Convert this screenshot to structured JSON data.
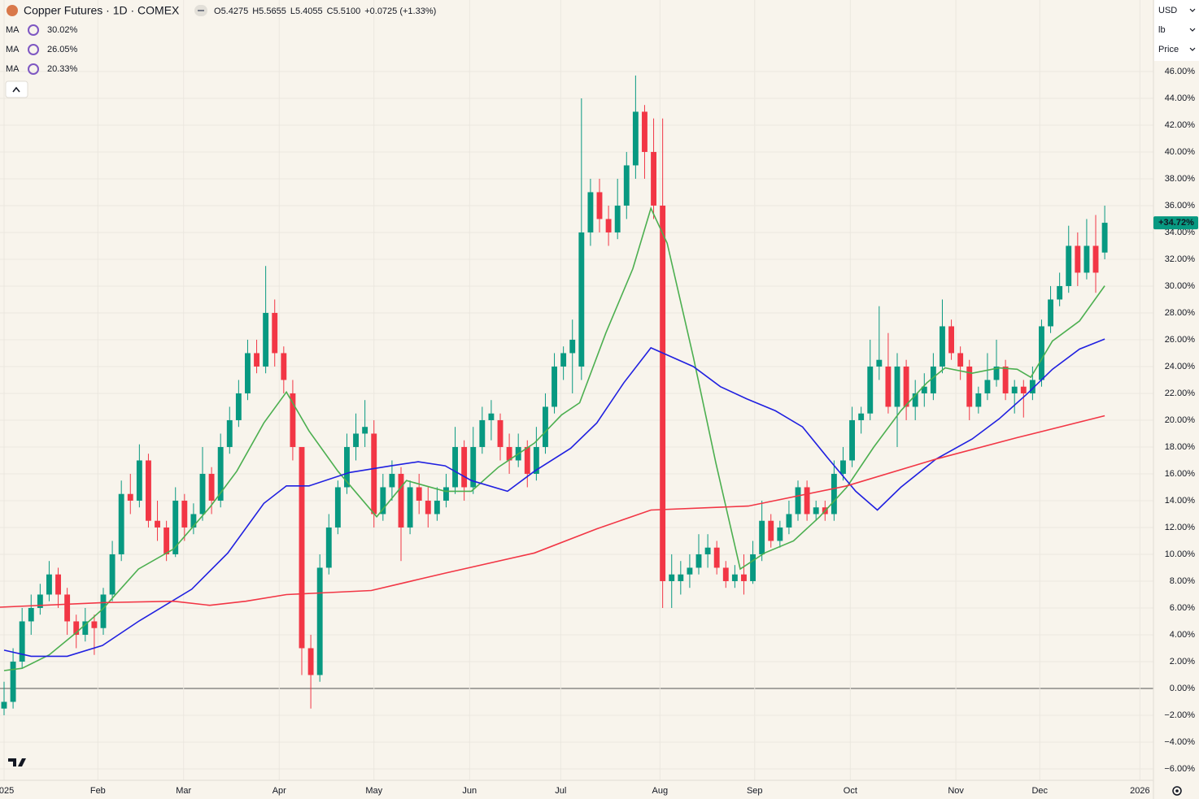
{
  "chart_data": {
    "type": "candlestick",
    "title": "Copper Futures · 1D · COMEX",
    "readout": [
      {
        "label": "O",
        "value": "5.4275"
      },
      {
        "label": "H",
        "value": "5.5655"
      },
      {
        "label": "L",
        "value": "5.4055"
      },
      {
        "label": "C",
        "value": "5.5100"
      }
    ],
    "change": "+0.0725 (+1.33%)",
    "controls": [
      "USD",
      "lb",
      "Price"
    ],
    "up_color": "#089981",
    "down_color": "#f23645",
    "grid": true,
    "last_value_label": "+34.72%",
    "xlim": [
      -0.45,
      127.4
    ],
    "xticks": [
      {
        "value": 0,
        "label": "2025"
      },
      {
        "value": 10.4,
        "label": "Feb"
      },
      {
        "value": 19.9,
        "label": "Mar"
      },
      {
        "value": 30.5,
        "label": "Apr"
      },
      {
        "value": 41.0,
        "label": "May"
      },
      {
        "value": 51.6,
        "label": "Jun"
      },
      {
        "value": 61.7,
        "label": "Jul"
      },
      {
        "value": 72.7,
        "label": "Aug"
      },
      {
        "value": 83.2,
        "label": "Sep"
      },
      {
        "value": 93.8,
        "label": "Oct"
      },
      {
        "value": 105.5,
        "label": "Nov"
      },
      {
        "value": 114.8,
        "label": "Dec"
      },
      {
        "value": 125.9,
        "label": "2026"
      }
    ],
    "ylim": [
      -6.85,
      51.33
    ],
    "yticks": [
      {
        "value": 46,
        "label": "46.00%"
      },
      {
        "value": 44,
        "label": "44.00%"
      },
      {
        "value": 42,
        "label": "42.00%"
      },
      {
        "value": 40,
        "label": "40.00%"
      },
      {
        "value": 38,
        "label": "38.00%"
      },
      {
        "value": 36,
        "label": "36.00%"
      },
      {
        "value": 34,
        "label": "34.00%"
      },
      {
        "value": 32,
        "label": "32.00%"
      },
      {
        "value": 30,
        "label": "30.00%"
      },
      {
        "value": 28,
        "label": "28.00%"
      },
      {
        "value": 26,
        "label": "26.00%"
      },
      {
        "value": 24,
        "label": "24.00%"
      },
      {
        "value": 22,
        "label": "22.00%"
      },
      {
        "value": 20,
        "label": "20.00%"
      },
      {
        "value": 18,
        "label": "18.00%"
      },
      {
        "value": 16,
        "label": "16.00%"
      },
      {
        "value": 14,
        "label": "14.00%"
      },
      {
        "value": 12,
        "label": "12.00%"
      },
      {
        "value": 10,
        "label": "10.00%"
      },
      {
        "value": 8,
        "label": "8.00%"
      },
      {
        "value": 6,
        "label": "6.00%"
      },
      {
        "value": 4,
        "label": "4.00%"
      },
      {
        "value": 2,
        "label": "2.00%"
      },
      {
        "value": 0,
        "label": "0.00%"
      },
      {
        "value": -2,
        "label": "−2.00%"
      },
      {
        "value": -4,
        "label": "−4.00%"
      },
      {
        "value": -6,
        "label": "−6.00%"
      }
    ],
    "candles": [
      [
        -1.5,
        0.5,
        -2,
        -1
      ],
      [
        -1,
        3,
        -1.5,
        2
      ],
      [
        2,
        6,
        1.5,
        5
      ],
      [
        5,
        7,
        4,
        6
      ],
      [
        6,
        7.8,
        5.5,
        7
      ],
      [
        7,
        9.5,
        6.5,
        8.5
      ],
      [
        8.5,
        9,
        6,
        7
      ],
      [
        7,
        7.5,
        4,
        5
      ],
      [
        5,
        5.5,
        3,
        4
      ],
      [
        4,
        6,
        3.5,
        5
      ],
      [
        5,
        5.5,
        2.5,
        4.5
      ],
      [
        4.5,
        7.5,
        4,
        7
      ],
      [
        7,
        11,
        6.5,
        10
      ],
      [
        10,
        15.5,
        9.5,
        14.5
      ],
      [
        14.5,
        16,
        13,
        14
      ],
      [
        14,
        18.2,
        13.5,
        17
      ],
      [
        17,
        17.5,
        12,
        12.5
      ],
      [
        12.5,
        14,
        11,
        12
      ],
      [
        12,
        12.5,
        9.5,
        10
      ],
      [
        10,
        15,
        9.8,
        14
      ],
      [
        14,
        14.5,
        11,
        12
      ],
      [
        12,
        13.8,
        11.5,
        13
      ],
      [
        13,
        18,
        12.5,
        16
      ],
      [
        16,
        16.5,
        13,
        14
      ],
      [
        14,
        19,
        13.5,
        18
      ],
      [
        18,
        21,
        17.5,
        20
      ],
      [
        20,
        23,
        19.5,
        22
      ],
      [
        22,
        26,
        21.5,
        25
      ],
      [
        25,
        26,
        23.5,
        24
      ],
      [
        24,
        31.5,
        23.5,
        28
      ],
      [
        28,
        29,
        24,
        25
      ],
      [
        25,
        25.5,
        22,
        23
      ],
      [
        22,
        23,
        17,
        18
      ],
      [
        18,
        18,
        1,
        3
      ],
      [
        3,
        4,
        -1.5,
        1
      ],
      [
        1,
        10,
        0.5,
        9
      ],
      [
        9,
        13,
        8.5,
        12
      ],
      [
        12,
        15.5,
        11.5,
        15
      ],
      [
        15,
        19,
        14.5,
        18
      ],
      [
        18,
        20.5,
        17,
        19
      ],
      [
        19,
        21.5,
        18,
        19.5
      ],
      [
        19,
        20,
        12,
        13
      ],
      [
        13,
        16,
        12.5,
        15
      ],
      [
        15,
        17,
        14,
        16
      ],
      [
        16,
        16.5,
        9.5,
        12
      ],
      [
        12,
        15.5,
        11.5,
        15
      ],
      [
        15,
        16,
        13,
        14
      ],
      [
        14,
        15,
        12,
        13
      ],
      [
        13,
        15,
        12.5,
        14
      ],
      [
        14,
        16,
        13.5,
        15
      ],
      [
        15,
        19.5,
        14.5,
        18
      ],
      [
        18,
        18.5,
        14,
        15
      ],
      [
        15,
        19.5,
        14.5,
        18
      ],
      [
        18,
        21,
        17.5,
        20
      ],
      [
        20,
        21.5,
        18.5,
        20.5
      ],
      [
        20,
        20.5,
        17,
        18
      ],
      [
        18,
        19,
        16,
        17
      ],
      [
        17,
        19,
        16.5,
        18
      ],
      [
        18,
        18.5,
        15,
        16
      ],
      [
        16,
        19.5,
        15.5,
        18
      ],
      [
        18,
        22,
        17.5,
        21
      ],
      [
        21,
        25,
        20.5,
        24
      ],
      [
        24,
        25.5,
        23,
        25
      ],
      [
        25,
        27.5,
        22,
        26
      ],
      [
        24,
        44,
        23,
        34
      ],
      [
        34,
        38,
        33,
        37
      ],
      [
        37,
        38,
        34,
        35
      ],
      [
        35,
        36,
        33,
        34
      ],
      [
        34,
        38,
        33.5,
        36
      ],
      [
        36,
        40,
        35,
        39
      ],
      [
        39,
        45.7,
        38,
        43
      ],
      [
        43,
        43.5,
        38,
        40
      ],
      [
        40,
        42.5,
        35,
        36
      ],
      [
        36,
        42.5,
        6,
        8
      ],
      [
        8,
        10,
        6,
        8.5
      ],
      [
        8,
        9.5,
        7,
        8.5
      ],
      [
        8.5,
        10,
        7.5,
        9
      ],
      [
        9,
        11.5,
        8.5,
        10
      ],
      [
        10,
        11.5,
        9,
        10.5
      ],
      [
        10.5,
        11,
        8.5,
        9
      ],
      [
        9,
        9.5,
        7.5,
        8
      ],
      [
        8,
        9.2,
        7.5,
        8.5
      ],
      [
        8.5,
        10,
        7,
        8
      ],
      [
        8,
        11,
        7.8,
        10
      ],
      [
        10,
        14,
        9.5,
        12.5
      ],
      [
        12.5,
        13,
        10.5,
        11
      ],
      [
        11,
        12.5,
        10.5,
        12
      ],
      [
        12,
        14,
        11.5,
        13
      ],
      [
        13,
        15.5,
        12.5,
        15
      ],
      [
        15,
        15.5,
        12.5,
        13
      ],
      [
        13,
        14,
        12.5,
        13.5
      ],
      [
        13.5,
        14,
        12.5,
        13
      ],
      [
        13,
        17,
        12.5,
        16
      ],
      [
        16,
        18,
        15.5,
        17
      ],
      [
        17,
        21,
        16.5,
        20
      ],
      [
        20,
        21,
        19,
        20.5
      ],
      [
        20.5,
        26,
        20,
        24
      ],
      [
        24,
        28.5,
        23,
        24.5
      ],
      [
        24,
        26.5,
        20.5,
        21
      ],
      [
        21,
        25,
        18,
        24
      ],
      [
        24,
        24.5,
        20,
        21
      ],
      [
        21,
        23,
        20,
        22
      ],
      [
        22,
        23.5,
        21,
        22.5
      ],
      [
        22,
        25,
        21.5,
        24
      ],
      [
        24,
        29,
        23.5,
        27
      ],
      [
        27,
        27.5,
        24.5,
        25
      ],
      [
        25,
        25.5,
        23,
        24
      ],
      [
        24,
        24.5,
        20,
        21
      ],
      [
        21,
        22.5,
        20.5,
        22
      ],
      [
        22,
        25,
        21.5,
        23
      ],
      [
        23,
        26,
        22.5,
        24
      ],
      [
        24,
        24.5,
        21.5,
        22
      ],
      [
        22,
        23,
        20.5,
        22.5
      ],
      [
        22.5,
        23,
        20.2,
        22
      ],
      [
        22,
        24,
        21.5,
        23
      ],
      [
        23,
        27.5,
        22.5,
        27
      ],
      [
        27,
        30,
        26.5,
        29
      ],
      [
        29,
        31,
        28.5,
        30
      ],
      [
        30,
        34.5,
        29.5,
        33
      ],
      [
        33,
        34,
        30,
        31
      ],
      [
        31,
        35,
        30.5,
        33
      ],
      [
        33,
        35.3,
        29.5,
        31
      ],
      [
        32.5,
        36,
        32,
        34.72
      ]
    ],
    "series": [
      {
        "name": "MA",
        "color": "#4caf50",
        "value_label": "30.02%",
        "x": [
          0,
          2,
          5,
          7.9,
          10.9,
          14.9,
          18.8,
          22.8,
          25.8,
          28.8,
          31.3,
          33.8,
          37,
          41.3,
          44.6,
          48.9,
          51.8,
          54.8,
          58.8,
          61.8,
          63.8,
          66.7,
          69.7,
          71.7,
          73.5,
          76.4,
          78.9,
          81.6,
          84.3,
          87.5,
          90.4,
          93.4,
          96.4,
          99.4,
          102.3,
          104.3,
          107.3,
          110.3,
          112.3,
          113.8,
          116.2,
          119.2,
          122
        ],
        "values": [
          1.33,
          1.5,
          2.5,
          4.1,
          5.9,
          8.9,
          10.4,
          13.5,
          16.2,
          19.8,
          22.1,
          19.2,
          16.2,
          12.8,
          15.5,
          14.7,
          14.7,
          16.5,
          18.3,
          20.4,
          21.3,
          26.5,
          31.3,
          35.8,
          33.2,
          24.7,
          16.8,
          8.9,
          10.1,
          11,
          12.8,
          15,
          18,
          20.7,
          22.8,
          23.9,
          23.5,
          23.9,
          23.8,
          23.2,
          25.9,
          27.4,
          30.02
        ]
      },
      {
        "name": "MA",
        "color": "#2020e0",
        "value_label": "26.05%",
        "x": [
          0,
          3,
          7,
          10.9,
          14.9,
          20.8,
          24.8,
          28.8,
          31.3,
          33.8,
          38.3,
          42.9,
          45.9,
          48.9,
          51.8,
          55.8,
          58.8,
          62.8,
          65.7,
          68.7,
          71.7,
          76.4,
          79.4,
          82.3,
          85.5,
          88.5,
          91.4,
          94.4,
          96.8,
          99.4,
          103.3,
          107.3,
          110.3,
          113.3,
          116.2,
          119.2,
          122
        ],
        "values": [
          2.85,
          2.4,
          2.4,
          3.2,
          5,
          7.4,
          10.1,
          13.8,
          15.1,
          15.1,
          16.1,
          16.6,
          16.9,
          16.6,
          15.5,
          14.7,
          16.2,
          17.9,
          19.8,
          22.8,
          25.4,
          24,
          22.5,
          21.6,
          20.7,
          19.5,
          17.1,
          14.7,
          13.3,
          15,
          17.1,
          18.6,
          20.1,
          21.9,
          23.8,
          25.3,
          26.05
        ]
      },
      {
        "name": "MA",
        "color": "#f23645",
        "value_label": "20.33%",
        "x": [
          -0.45,
          10.9,
          18.8,
          22.8,
          26.8,
          31.3,
          40.7,
          48.9,
          58.8,
          65.7,
          71.7,
          82.5,
          93.4,
          103.3,
          112.3,
          122
        ],
        "values": [
          6.06,
          6.4,
          6.5,
          6.2,
          6.5,
          7,
          7.3,
          8.6,
          10.1,
          11.9,
          13.3,
          13.6,
          15.1,
          17.1,
          18.7,
          20.33
        ]
      }
    ]
  }
}
